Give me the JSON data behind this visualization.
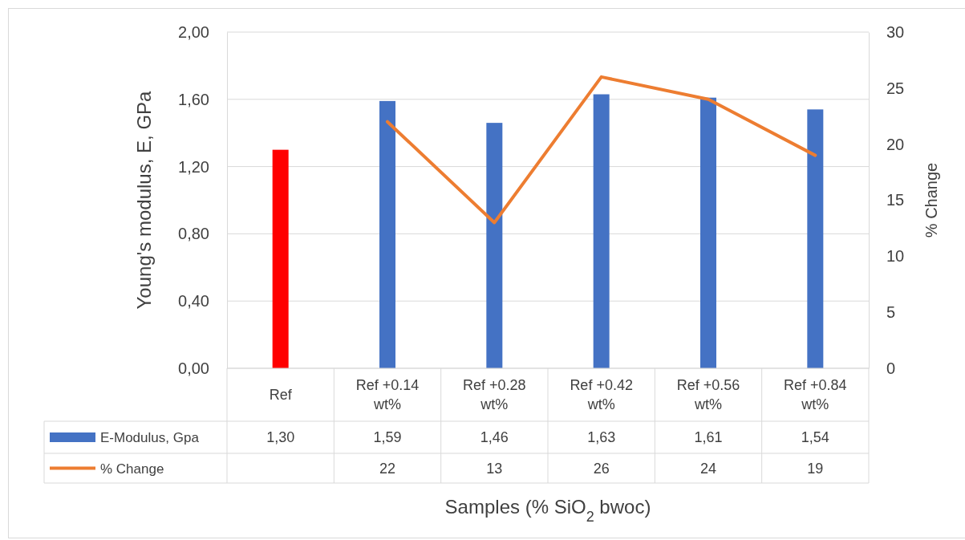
{
  "chart_data": {
    "type": "bar",
    "xlabel": "Samples (% SiO$_{2}$ bwoc)",
    "ylabel": "Young's modulus, E, GPa",
    "y2label": "% Change",
    "categories": [
      "Ref",
      "Ref +0.14 wt%",
      "Ref +0.28 wt%",
      "Ref +0.42 wt%",
      "Ref +0.56 wt%",
      "Ref +0.84 wt%"
    ],
    "series": [
      {
        "name": "E-Modulus, Gpa",
        "color": "#4472c4",
        "colors": [
          "#ff0000",
          "#4472c4",
          "#4472c4",
          "#4472c4",
          "#4472c4",
          "#4472c4"
        ],
        "values": [
          1.3,
          1.59,
          1.46,
          1.63,
          1.61,
          1.54
        ],
        "value_labels": [
          "1,30",
          "1,59",
          "1,46",
          "1,63",
          "1,61",
          "1,54"
        ]
      },
      {
        "name": "% Change",
        "type": "line",
        "axis": "y2",
        "color": "#ed7d31",
        "values": [
          null,
          22,
          13,
          26,
          24,
          19
        ],
        "value_labels": [
          null,
          "22",
          "13",
          "26",
          "24",
          "19"
        ]
      }
    ],
    "ylim": [
      0,
      2
    ],
    "yticks": [
      {
        "value": 0,
        "label": "0,00"
      },
      {
        "value": 0.4,
        "label": "0,40"
      },
      {
        "value": 0.8,
        "label": "0,80"
      },
      {
        "value": 1.2,
        "label": "1,20"
      },
      {
        "value": 1.6,
        "label": "1,60"
      },
      {
        "value": 2,
        "label": "2,00"
      }
    ],
    "y2lim": [
      0,
      30
    ],
    "y2ticks": [
      0,
      5,
      10,
      15,
      20,
      25,
      30
    ],
    "grid": "y",
    "line_style": "solid",
    "marker": "none",
    "legend": "bottom"
  }
}
